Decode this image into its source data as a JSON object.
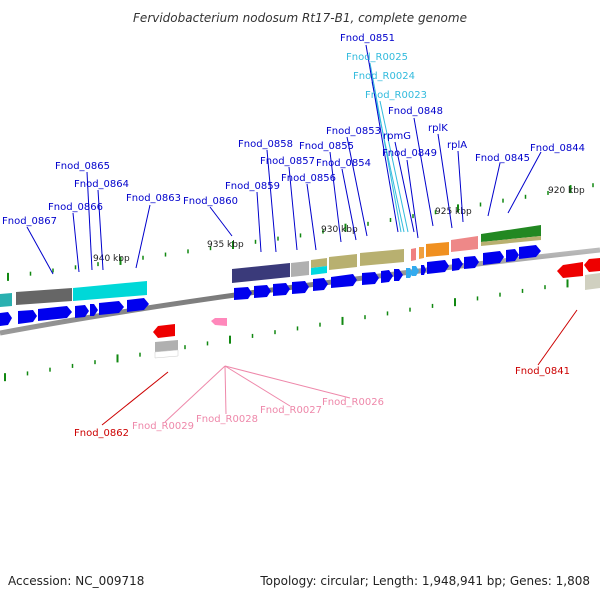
{
  "title": "Fervidobacterium nodosum Rt17-B1, complete genome",
  "footer": {
    "accession": "Accession: NC_009718",
    "stats": "Topology: circular; Length: 1,948,941 bp; Genes: 1,808"
  },
  "colors": {
    "plus_label": "#0000cc",
    "rna_label": "#33bbdd",
    "minus_label": "#cc0000",
    "minus_rna_label": "#ee88aa",
    "backbone": "#888888",
    "arrow_blue": "#0000ee",
    "tick": "#118811"
  },
  "scale": {
    "ticks": [
      "920 kbp",
      "925 kbp",
      "930 kbp",
      "935 kbp",
      "940 kbp"
    ]
  },
  "genes": {
    "plus": [
      "Fnod_0844",
      "Fnod_0845",
      "rplA",
      "rplK",
      "Fnod_0848",
      "Fnod_0849",
      "rpmG",
      "Fnod_R0023",
      "Fnod_R0024",
      "Fnod_R0025",
      "Fnod_0851",
      "Fnod_0853",
      "Fnod_0854",
      "Fnod_0855",
      "Fnod_0856",
      "Fnod_0857",
      "Fnod_0858",
      "Fnod_0859",
      "Fnod_0860",
      "Fnod_0863",
      "Fnod_0864",
      "Fnod_0865",
      "Fnod_0866",
      "Fnod_0867"
    ],
    "minus": [
      "Fnod_0841",
      "Fnod_0862",
      "Fnod_R0026",
      "Fnod_R0027",
      "Fnod_R0028",
      "Fnod_R0029"
    ]
  }
}
